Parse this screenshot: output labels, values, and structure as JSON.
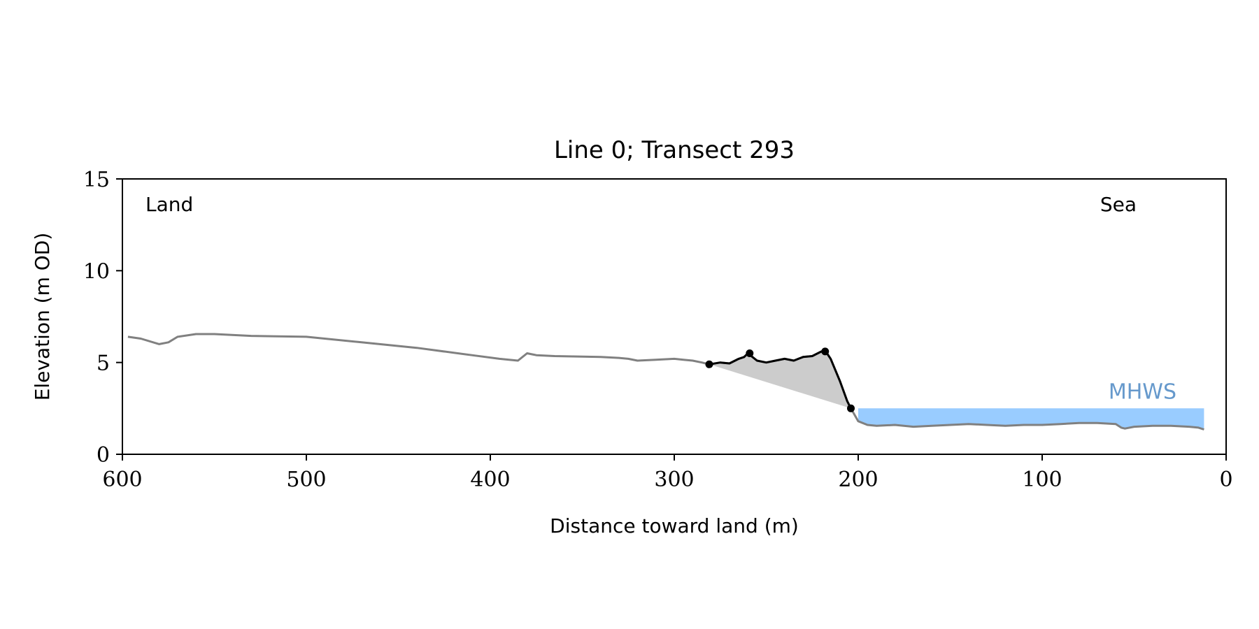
{
  "chart_data": {
    "type": "line",
    "title": "Line 0; Transect 293",
    "xlabel": "Distance toward land (m)",
    "ylabel": "Elevation (m OD)",
    "xlim": [
      600,
      0
    ],
    "ylim": [
      0,
      15
    ],
    "x_ticks": [
      600,
      500,
      400,
      300,
      200,
      100,
      0
    ],
    "y_ticks": [
      0,
      5,
      10,
      15
    ],
    "grid": false,
    "annotations": {
      "land_label": "Land",
      "sea_label": "Sea",
      "mhws_label": "MHWS"
    },
    "mhws_level": 2.5,
    "mhws_extent": [
      200,
      12
    ],
    "colors": {
      "profile": "#808080",
      "dune": "#000000",
      "dune_fill": "#cccccc",
      "water": "#99ccff",
      "mhws_text": "#6699cc"
    },
    "series": [
      {
        "role": "profile",
        "x": [
          597,
          590,
          580,
          575,
          570,
          560,
          550,
          530,
          500,
          470,
          440,
          410,
          395,
          385,
          380,
          375,
          365,
          340,
          330,
          325,
          320,
          310,
          300,
          295,
          290,
          285,
          281,
          275,
          270,
          265,
          262,
          260,
          255,
          250,
          245,
          240,
          235,
          230,
          225,
          220,
          217,
          215,
          210,
          206,
          204,
          200,
          195,
          190,
          180,
          170,
          160,
          150,
          140,
          130,
          120,
          110,
          100,
          90,
          80,
          70,
          60,
          57,
          55,
          50,
          40,
          30,
          20,
          15,
          12
        ],
        "y": [
          6.4,
          6.3,
          6.0,
          6.1,
          6.4,
          6.55,
          6.55,
          6.45,
          6.4,
          6.1,
          5.8,
          5.4,
          5.2,
          5.1,
          5.5,
          5.4,
          5.35,
          5.3,
          5.25,
          5.2,
          5.1,
          5.15,
          5.2,
          5.15,
          5.1,
          5.0,
          4.9,
          5.0,
          4.95,
          5.2,
          5.3,
          5.5,
          5.1,
          5.0,
          5.1,
          5.2,
          5.1,
          5.3,
          5.35,
          5.6,
          5.5,
          5.2,
          4.0,
          2.9,
          2.5,
          1.8,
          1.6,
          1.55,
          1.6,
          1.5,
          1.55,
          1.6,
          1.65,
          1.6,
          1.55,
          1.6,
          1.6,
          1.65,
          1.7,
          1.7,
          1.65,
          1.45,
          1.4,
          1.5,
          1.55,
          1.55,
          1.5,
          1.45,
          1.35
        ]
      },
      {
        "role": "dune",
        "x": [
          281,
          275,
          270,
          265,
          262,
          260,
          255,
          250,
          245,
          240,
          235,
          230,
          225,
          220,
          217,
          215,
          210,
          206,
          204
        ],
        "y": [
          4.9,
          5.0,
          4.95,
          5.2,
          5.3,
          5.5,
          5.1,
          5.0,
          5.1,
          5.2,
          5.1,
          5.3,
          5.35,
          5.6,
          5.5,
          5.2,
          4.0,
          2.9,
          2.5
        ]
      }
    ],
    "markers": {
      "x": [
        281,
        259,
        218,
        204
      ],
      "y": [
        4.9,
        5.5,
        5.6,
        2.5
      ]
    }
  }
}
